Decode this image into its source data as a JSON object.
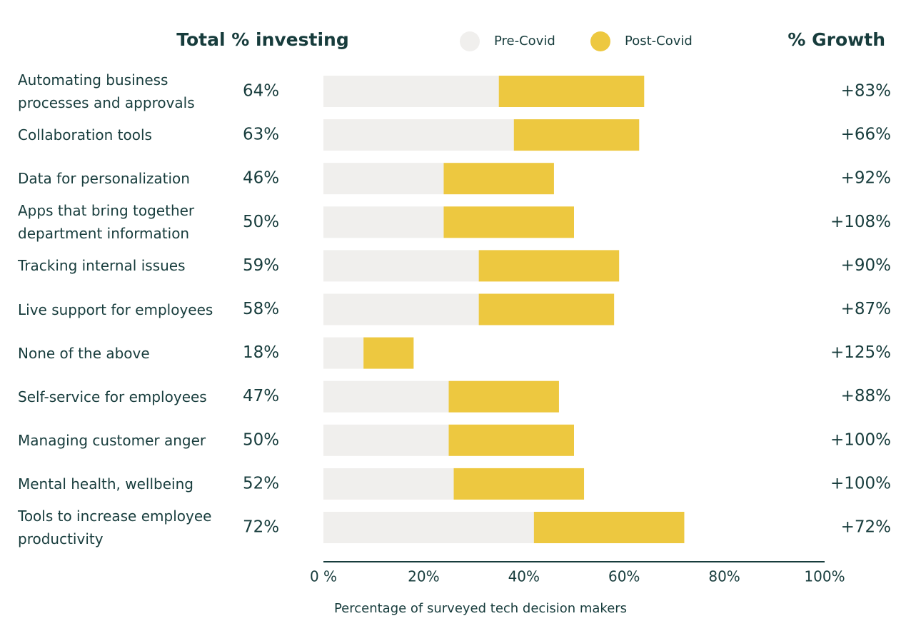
{
  "chart_data": {
    "type": "stacked-barh",
    "categories": [
      "Automating business processes and approvals",
      "Collaboration tools",
      "Data for personalization",
      "Apps that bring together department information",
      "Tracking internal issues",
      "Live support for employees",
      "None of the above",
      "Self-service for employees",
      "Managing customer anger",
      "Mental health, wellbeing",
      "Tools to increase employee productivity"
    ],
    "series": [
      {
        "name": "Pre-Covid",
        "color": "#f0efed",
        "values": [
          35,
          38,
          24,
          24,
          31,
          31,
          8,
          25,
          25,
          26,
          42
        ]
      },
      {
        "name": "Post-Covid",
        "color": "#edc840",
        "values": [
          29,
          25,
          22,
          26,
          28,
          27,
          10,
          22,
          25,
          26,
          30
        ]
      }
    ],
    "total_column": {
      "title": "Total % investing",
      "labels": [
        "64%",
        "63%",
        "46%",
        "50%",
        "59%",
        "58%",
        "18%",
        "47%",
        "50%",
        "52%",
        "72%"
      ]
    },
    "growth_column": {
      "title": "% Growth",
      "labels": [
        "+83%",
        "+66%",
        "+92%",
        "+108%",
        "+90%",
        "+87%",
        "+125%",
        "+88%",
        "+100%",
        "+100%",
        "+72%"
      ]
    },
    "xlim": [
      0,
      100
    ],
    "xticks": [
      {
        "value": 0,
        "label": "0 %"
      },
      {
        "value": 20,
        "label": "20%"
      },
      {
        "value": 40,
        "label": "40%"
      },
      {
        "value": 60,
        "label": "60%"
      },
      {
        "value": 80,
        "label": "80%"
      },
      {
        "value": 100,
        "label": "100%"
      }
    ],
    "x_label": "Percentage of surveyed tech decision makers"
  }
}
